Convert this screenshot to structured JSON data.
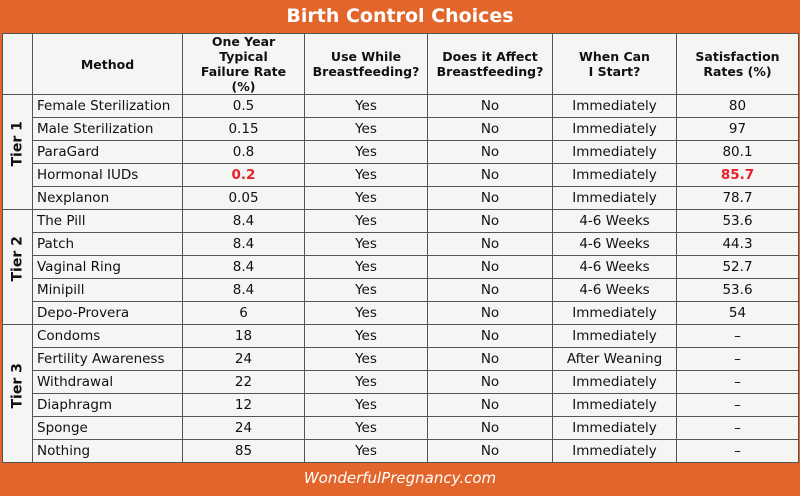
{
  "header": {
    "title": "Birth Control Choices"
  },
  "table": {
    "columns": [
      "",
      "Method",
      "One Year Typical\nFailure Rate (%)",
      "Use While\nBreastfeeding?",
      "Does it Affect\nBreastfeeding?",
      "When Can\nI Start?",
      "Satisfaction\nRates (%)"
    ],
    "tiers": [
      {
        "label": "Tier 1",
        "rows": [
          [
            "Female Sterilization",
            "0.5",
            "Yes",
            "No",
            "Immediately",
            "80"
          ],
          [
            "Male Sterilization",
            "0.15",
            "Yes",
            "No",
            "Immediately",
            "97"
          ],
          [
            "ParaGard",
            "0.8",
            "Yes",
            "No",
            "Immediately",
            "80.1"
          ],
          [
            "Hormonal IUDs",
            "0.2",
            "Yes",
            "No",
            "Immediately",
            "85.7"
          ],
          [
            "Nexplanon",
            "0.05",
            "Yes",
            "No",
            "Immediately",
            "78.7"
          ]
        ]
      },
      {
        "label": "Tier 2",
        "rows": [
          [
            "The Pill",
            "8.4",
            "Yes",
            "No",
            "4-6 Weeks",
            "53.6"
          ],
          [
            "Patch",
            "8.4",
            "Yes",
            "No",
            "4-6 Weeks",
            "44.3"
          ],
          [
            "Vaginal Ring",
            "8.4",
            "Yes",
            "No",
            "4-6 Weeks",
            "52.7"
          ],
          [
            "Minipill",
            "8.4",
            "Yes",
            "No",
            "4-6 Weeks",
            "53.6"
          ],
          [
            "Depo-Provera",
            "6",
            "Yes",
            "No",
            "Immediately",
            "54"
          ]
        ]
      },
      {
        "label": "Tier 3",
        "rows": [
          [
            "Condoms",
            "18",
            "Yes",
            "No",
            "Immediately",
            "–"
          ],
          [
            "Fertility Awareness",
            "24",
            "Yes",
            "No",
            "After Weaning",
            "–"
          ],
          [
            "Withdrawal",
            "22",
            "Yes",
            "No",
            "Immediately",
            "–"
          ],
          [
            "Diaphragm",
            "12",
            "Yes",
            "No",
            "Immediately",
            "–"
          ],
          [
            "Sponge",
            "24",
            "Yes",
            "No",
            "Immediately",
            "–"
          ],
          [
            "Nothing",
            "85",
            "Yes",
            "No",
            "Immediately",
            "–"
          ]
        ]
      }
    ],
    "highlight": {
      "tier": 0,
      "row": 3,
      "cells": [
        1,
        5
      ],
      "color": "#e8202a"
    }
  },
  "footer": {
    "text": "WonderfulPregnancy.com"
  }
}
